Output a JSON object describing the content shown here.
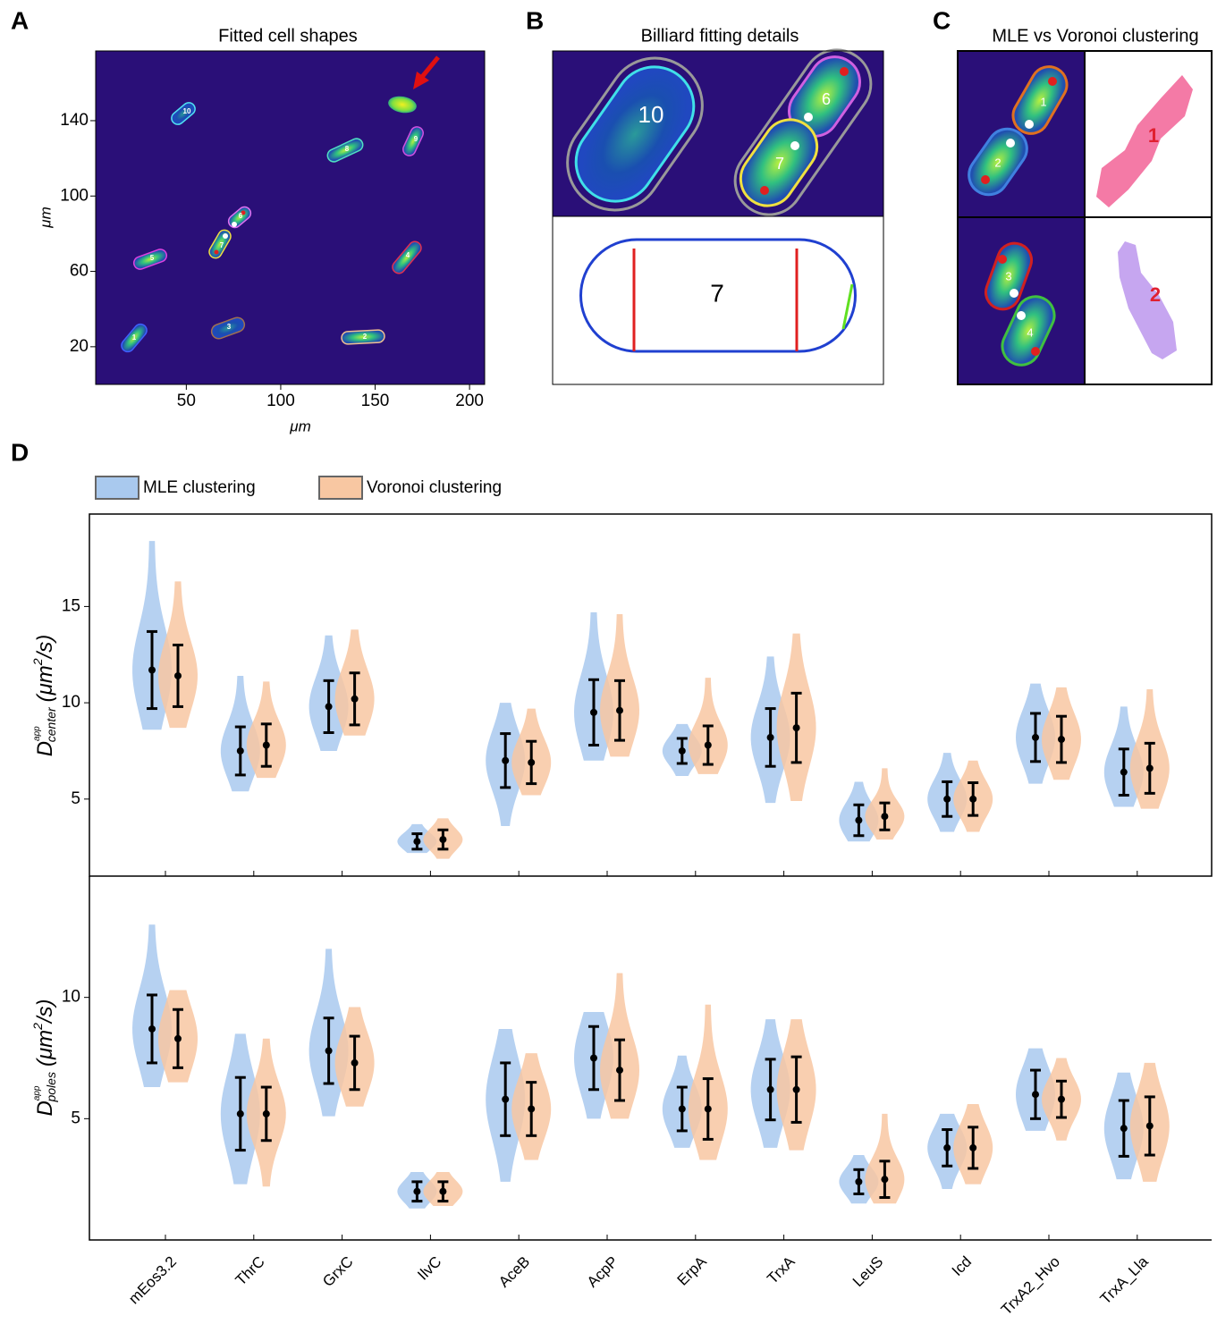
{
  "figure_labels": [
    "A",
    "B",
    "C",
    "D"
  ],
  "chart_data": [
    {
      "type": "image",
      "title": "Fitted cell shapes",
      "xlabel": "μm",
      "ylabel": "μm",
      "xlim": [
        2,
        208
      ],
      "ylim": [
        0,
        177
      ],
      "xticks": [
        50,
        100,
        150,
        200
      ],
      "yticks": [
        20,
        60,
        100,
        140
      ],
      "annotations": [
        "1",
        "2",
        "3",
        "4",
        "5",
        "6",
        "7",
        "8",
        "9",
        "10"
      ]
    },
    {
      "type": "violin",
      "legend": "top-left",
      "ylabel": {
        "symbol": "D",
        "sup": "app",
        "sub": "center",
        "unit": "(μm",
        "unit_sup": "2",
        "unit_end": "/s)"
      },
      "ylim": [
        1,
        19.8
      ],
      "yticks": [
        5,
        10,
        15
      ],
      "series": [
        {
          "name": "MLE clustering",
          "color": "#a9c9ee",
          "values": [
            11.7,
            7.5,
            9.8,
            2.8,
            7.0,
            9.5,
            7.5,
            8.2,
            3.9,
            5.0,
            8.2,
            6.4
          ],
          "errors": [
            2.0,
            1.25,
            1.35,
            0.4,
            1.4,
            1.7,
            0.65,
            1.5,
            0.8,
            0.9,
            1.25,
            1.2
          ],
          "ranges": [
            [
              8.6,
              18.4
            ],
            [
              5.4,
              11.4
            ],
            [
              7.5,
              13.5
            ],
            [
              2.2,
              3.7
            ],
            [
              3.6,
              10.0
            ],
            [
              7.0,
              14.7
            ],
            [
              6.2,
              8.9
            ],
            [
              4.8,
              12.4
            ],
            [
              2.8,
              5.9
            ],
            [
              3.3,
              7.4
            ],
            [
              5.8,
              11.0
            ],
            [
              4.6,
              9.8
            ]
          ]
        },
        {
          "name": "Voronoi clustering",
          "color": "#f8c7a2",
          "values": [
            11.4,
            7.8,
            10.2,
            2.9,
            6.9,
            9.6,
            7.8,
            8.7,
            4.1,
            5.0,
            8.1,
            6.6
          ],
          "errors": [
            1.6,
            1.1,
            1.35,
            0.5,
            1.1,
            1.55,
            1.0,
            1.8,
            0.7,
            0.85,
            1.2,
            1.3
          ],
          "ranges": [
            [
              8.7,
              16.3
            ],
            [
              6.1,
              11.1
            ],
            [
              8.3,
              13.8
            ],
            [
              1.9,
              4.0
            ],
            [
              5.2,
              9.7
            ],
            [
              7.2,
              14.6
            ],
            [
              6.3,
              11.3
            ],
            [
              4.9,
              13.6
            ],
            [
              2.9,
              6.6
            ],
            [
              3.3,
              7.0
            ],
            [
              6.0,
              10.8
            ],
            [
              4.5,
              10.7
            ]
          ]
        }
      ]
    },
    {
      "type": "violin",
      "ylabel": {
        "symbol": "D",
        "sup": "app",
        "sub": "poles",
        "unit": "(μm",
        "unit_sup": "2",
        "unit_end": "/s)"
      },
      "categories": [
        "mEos3.2",
        "ThrC",
        "GrxC",
        "IlvC",
        "AceB",
        "AcpP",
        "ErpA",
        "TrxA",
        "LeuS",
        "Icd",
        "TrxA2_Hvo",
        "TrxA_Lla"
      ],
      "ylim": [
        0,
        15
      ],
      "yticks": [
        5,
        10
      ],
      "series": [
        {
          "color": "#a9c9ee",
          "values": [
            8.7,
            5.2,
            7.8,
            2.0,
            5.8,
            7.5,
            5.4,
            6.2,
            2.4,
            3.8,
            6.0,
            4.6
          ],
          "errors": [
            1.4,
            1.5,
            1.35,
            0.4,
            1.5,
            1.3,
            0.9,
            1.25,
            0.5,
            0.75,
            1.0,
            1.15
          ],
          "ranges": [
            [
              6.3,
              13.0
            ],
            [
              2.3,
              8.5
            ],
            [
              5.1,
              12.0
            ],
            [
              1.3,
              2.8
            ],
            [
              2.4,
              8.7
            ],
            [
              5.0,
              9.4
            ],
            [
              3.8,
              7.6
            ],
            [
              3.8,
              9.1
            ],
            [
              1.5,
              3.5
            ],
            [
              2.1,
              5.2
            ],
            [
              4.5,
              7.9
            ],
            [
              2.5,
              6.9
            ]
          ]
        },
        {
          "color": "#f8c7a2",
          "values": [
            8.3,
            5.2,
            7.3,
            2.0,
            5.4,
            7.0,
            5.4,
            6.2,
            2.5,
            3.8,
            5.8,
            4.7
          ],
          "errors": [
            1.2,
            1.1,
            1.1,
            0.4,
            1.1,
            1.25,
            1.25,
            1.35,
            0.75,
            0.85,
            0.75,
            1.2
          ],
          "ranges": [
            [
              6.5,
              10.3
            ],
            [
              2.2,
              8.3
            ],
            [
              5.5,
              9.6
            ],
            [
              1.4,
              2.8
            ],
            [
              3.3,
              7.7
            ],
            [
              5.0,
              11.0
            ],
            [
              3.3,
              9.7
            ],
            [
              3.7,
              9.1
            ],
            [
              1.5,
              5.2
            ],
            [
              2.3,
              5.6
            ],
            [
              4.1,
              7.5
            ],
            [
              2.4,
              7.3
            ]
          ]
        }
      ]
    }
  ],
  "panel_b": {
    "title": "Billiard fitting details",
    "cells": [
      "10",
      "6",
      "7"
    ],
    "diagram_label": "7"
  },
  "panel_c": {
    "title": "MLE vs Voronoi clustering",
    "cells": [
      "1",
      "2",
      "3",
      "4"
    ],
    "clusters": [
      "1",
      "2"
    ]
  }
}
